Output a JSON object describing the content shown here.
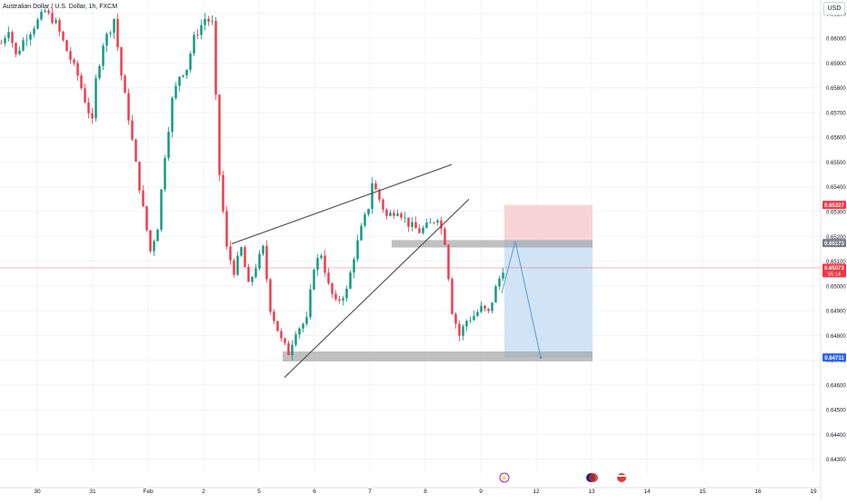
{
  "header": {
    "symbol_title": "Australian Dollar / U.S. Dollar, 1h, FXCM",
    "currency": "USD"
  },
  "price_labels": {
    "stop_price": "0.65327",
    "zone_price": "0.65173",
    "last_price": "0.65073",
    "countdown": "55:14",
    "target_price": "0.64711"
  },
  "colors": {
    "up": "#089981",
    "down": "#f23645",
    "grid": "#f0f3fa",
    "axis_text": "#131722",
    "stop_zone": "#f7c9cc",
    "target_zone": "#c8dff5",
    "gray_zone": "#9e9e9e",
    "trendline": "#555555",
    "projection": "#5b9bd5",
    "last_price_line": "#f23645",
    "target_badge": "#2962ff",
    "stop_badge": "#f23645",
    "zone_badge": "#787b86"
  },
  "chart_data": {
    "type": "candlestick",
    "title": "Australian Dollar / U.S. Dollar, 1h, FXCM",
    "ylim": [
      0.6424,
      0.6614
    ],
    "y_ticks": [
      "0.66100",
      "0.66000",
      "0.65900",
      "0.65800",
      "0.65700",
      "0.65600",
      "0.65500",
      "0.65400",
      "0.65300",
      "0.65200",
      "0.65100",
      "0.65000",
      "0.64900",
      "0.64800",
      "0.64700",
      "0.64600",
      "0.64500",
      "0.64400",
      "0.64300"
    ],
    "x_ticks": [
      "30",
      "31",
      "Feb",
      "2",
      "5",
      "6",
      "7",
      "8",
      "9",
      "12",
      "13",
      "14",
      "15",
      "16",
      "19"
    ],
    "price_path": [
      [
        0,
        0.6598
      ],
      [
        2,
        0.6604
      ],
      [
        4,
        0.6593
      ],
      [
        6,
        0.6599
      ],
      [
        8,
        0.6603
      ],
      [
        10,
        0.6607
      ],
      [
        12,
        0.6611
      ],
      [
        15,
        0.6606
      ],
      [
        18,
        0.6595
      ],
      [
        21,
        0.6585
      ],
      [
        23,
        0.6575
      ],
      [
        25,
        0.6566
      ],
      [
        26,
        0.6583
      ],
      [
        28,
        0.6598
      ],
      [
        30,
        0.6604
      ],
      [
        31,
        0.6608
      ],
      [
        33,
        0.6585
      ],
      [
        35,
        0.6568
      ],
      [
        37,
        0.6549
      ],
      [
        39,
        0.6531
      ],
      [
        41,
        0.6514
      ],
      [
        43,
        0.6524
      ],
      [
        45,
        0.6553
      ],
      [
        47,
        0.6575
      ],
      [
        49,
        0.6585
      ],
      [
        51,
        0.6588
      ],
      [
        53,
        0.66
      ],
      [
        56,
        0.6608
      ],
      [
        58,
        0.6606
      ],
      [
        60,
        0.6545
      ],
      [
        62,
        0.6515
      ],
      [
        64,
        0.6506
      ],
      [
        66,
        0.6515
      ],
      [
        68,
        0.65
      ],
      [
        70,
        0.6508
      ],
      [
        72,
        0.6515
      ],
      [
        74,
        0.6491
      ],
      [
        77,
        0.6478
      ],
      [
        79,
        0.6473
      ],
      [
        81,
        0.6482
      ],
      [
        84,
        0.6486
      ],
      [
        86,
        0.6508
      ],
      [
        88,
        0.6513
      ],
      [
        90,
        0.65
      ],
      [
        92,
        0.6493
      ],
      [
        95,
        0.6498
      ],
      [
        97,
        0.6512
      ],
      [
        99,
        0.6523
      ],
      [
        101,
        0.6532
      ],
      [
        102,
        0.6542
      ],
      [
        104,
        0.6535
      ],
      [
        106,
        0.6528
      ],
      [
        109,
        0.6531
      ],
      [
        112,
        0.6525
      ],
      [
        115,
        0.6522
      ],
      [
        118,
        0.6525
      ],
      [
        120,
        0.6528
      ],
      [
        122,
        0.6518
      ],
      [
        124,
        0.649
      ],
      [
        126,
        0.648
      ],
      [
        128,
        0.6486
      ],
      [
        130,
        0.6488
      ],
      [
        132,
        0.6491
      ],
      [
        134,
        0.6489
      ],
      [
        136,
        0.6499
      ],
      [
        138,
        0.6507
      ]
    ],
    "annotations": {
      "wedge_upper": [
        [
          0.6517,
          0.6549
        ]
      ],
      "wedge_lower": [
        [
          0.6463,
          0.6535
        ]
      ],
      "resistance_zone": [
        0.65155,
        0.65185
      ],
      "support_zone": [
        0.64695,
        0.64735
      ],
      "stop_zone": [
        0.65185,
        0.65327
      ],
      "target_zone": [
        0.64711,
        0.65185
      ],
      "projection": [
        0.6497,
        0.6518,
        0.64711
      ]
    },
    "grid": true
  }
}
